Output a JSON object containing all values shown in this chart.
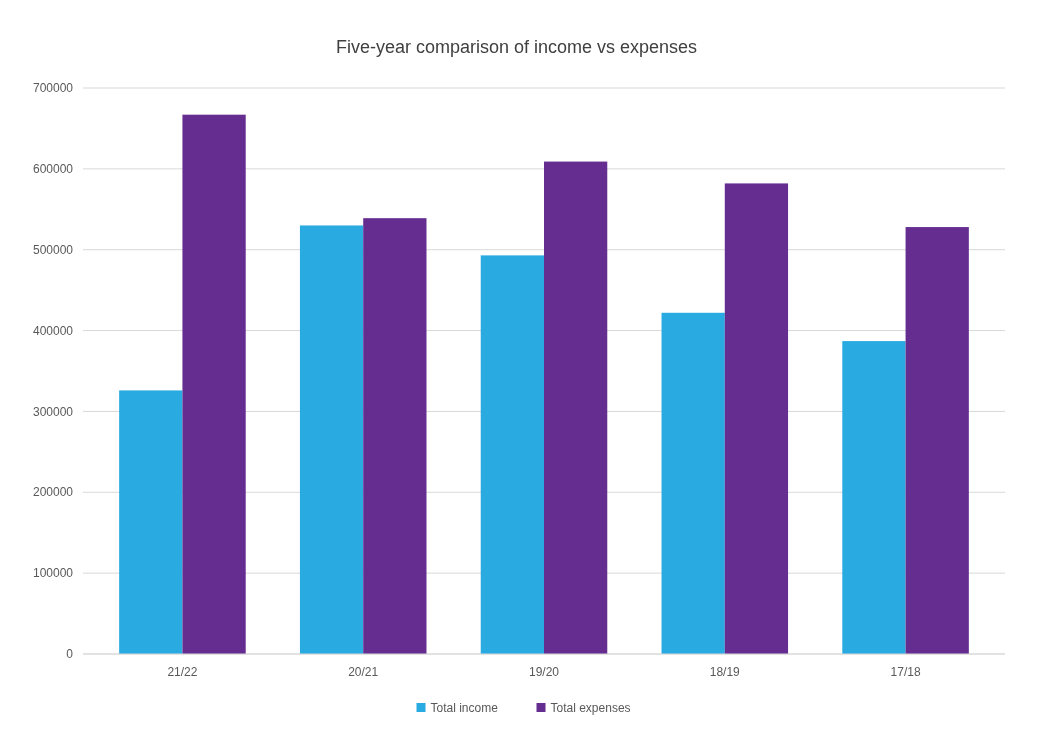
{
  "chart_data": {
    "type": "bar",
    "title": "Five-year comparison of income vs expenses",
    "categories": [
      "21/22",
      "20/21",
      "19/20",
      "18/19",
      "17/18"
    ],
    "series": [
      {
        "name": "Total income",
        "color": "#29abe2",
        "values": [
          326000,
          530000,
          493000,
          422000,
          387000
        ]
      },
      {
        "name": "Total expenses",
        "color": "#662d91",
        "values": [
          667000,
          539000,
          609000,
          582000,
          528000
        ]
      }
    ],
    "ylim": [
      0,
      700000
    ],
    "yticks": [
      0,
      100000,
      200000,
      300000,
      400000,
      500000,
      600000,
      700000
    ],
    "grid": "y",
    "legend": "bottom"
  }
}
